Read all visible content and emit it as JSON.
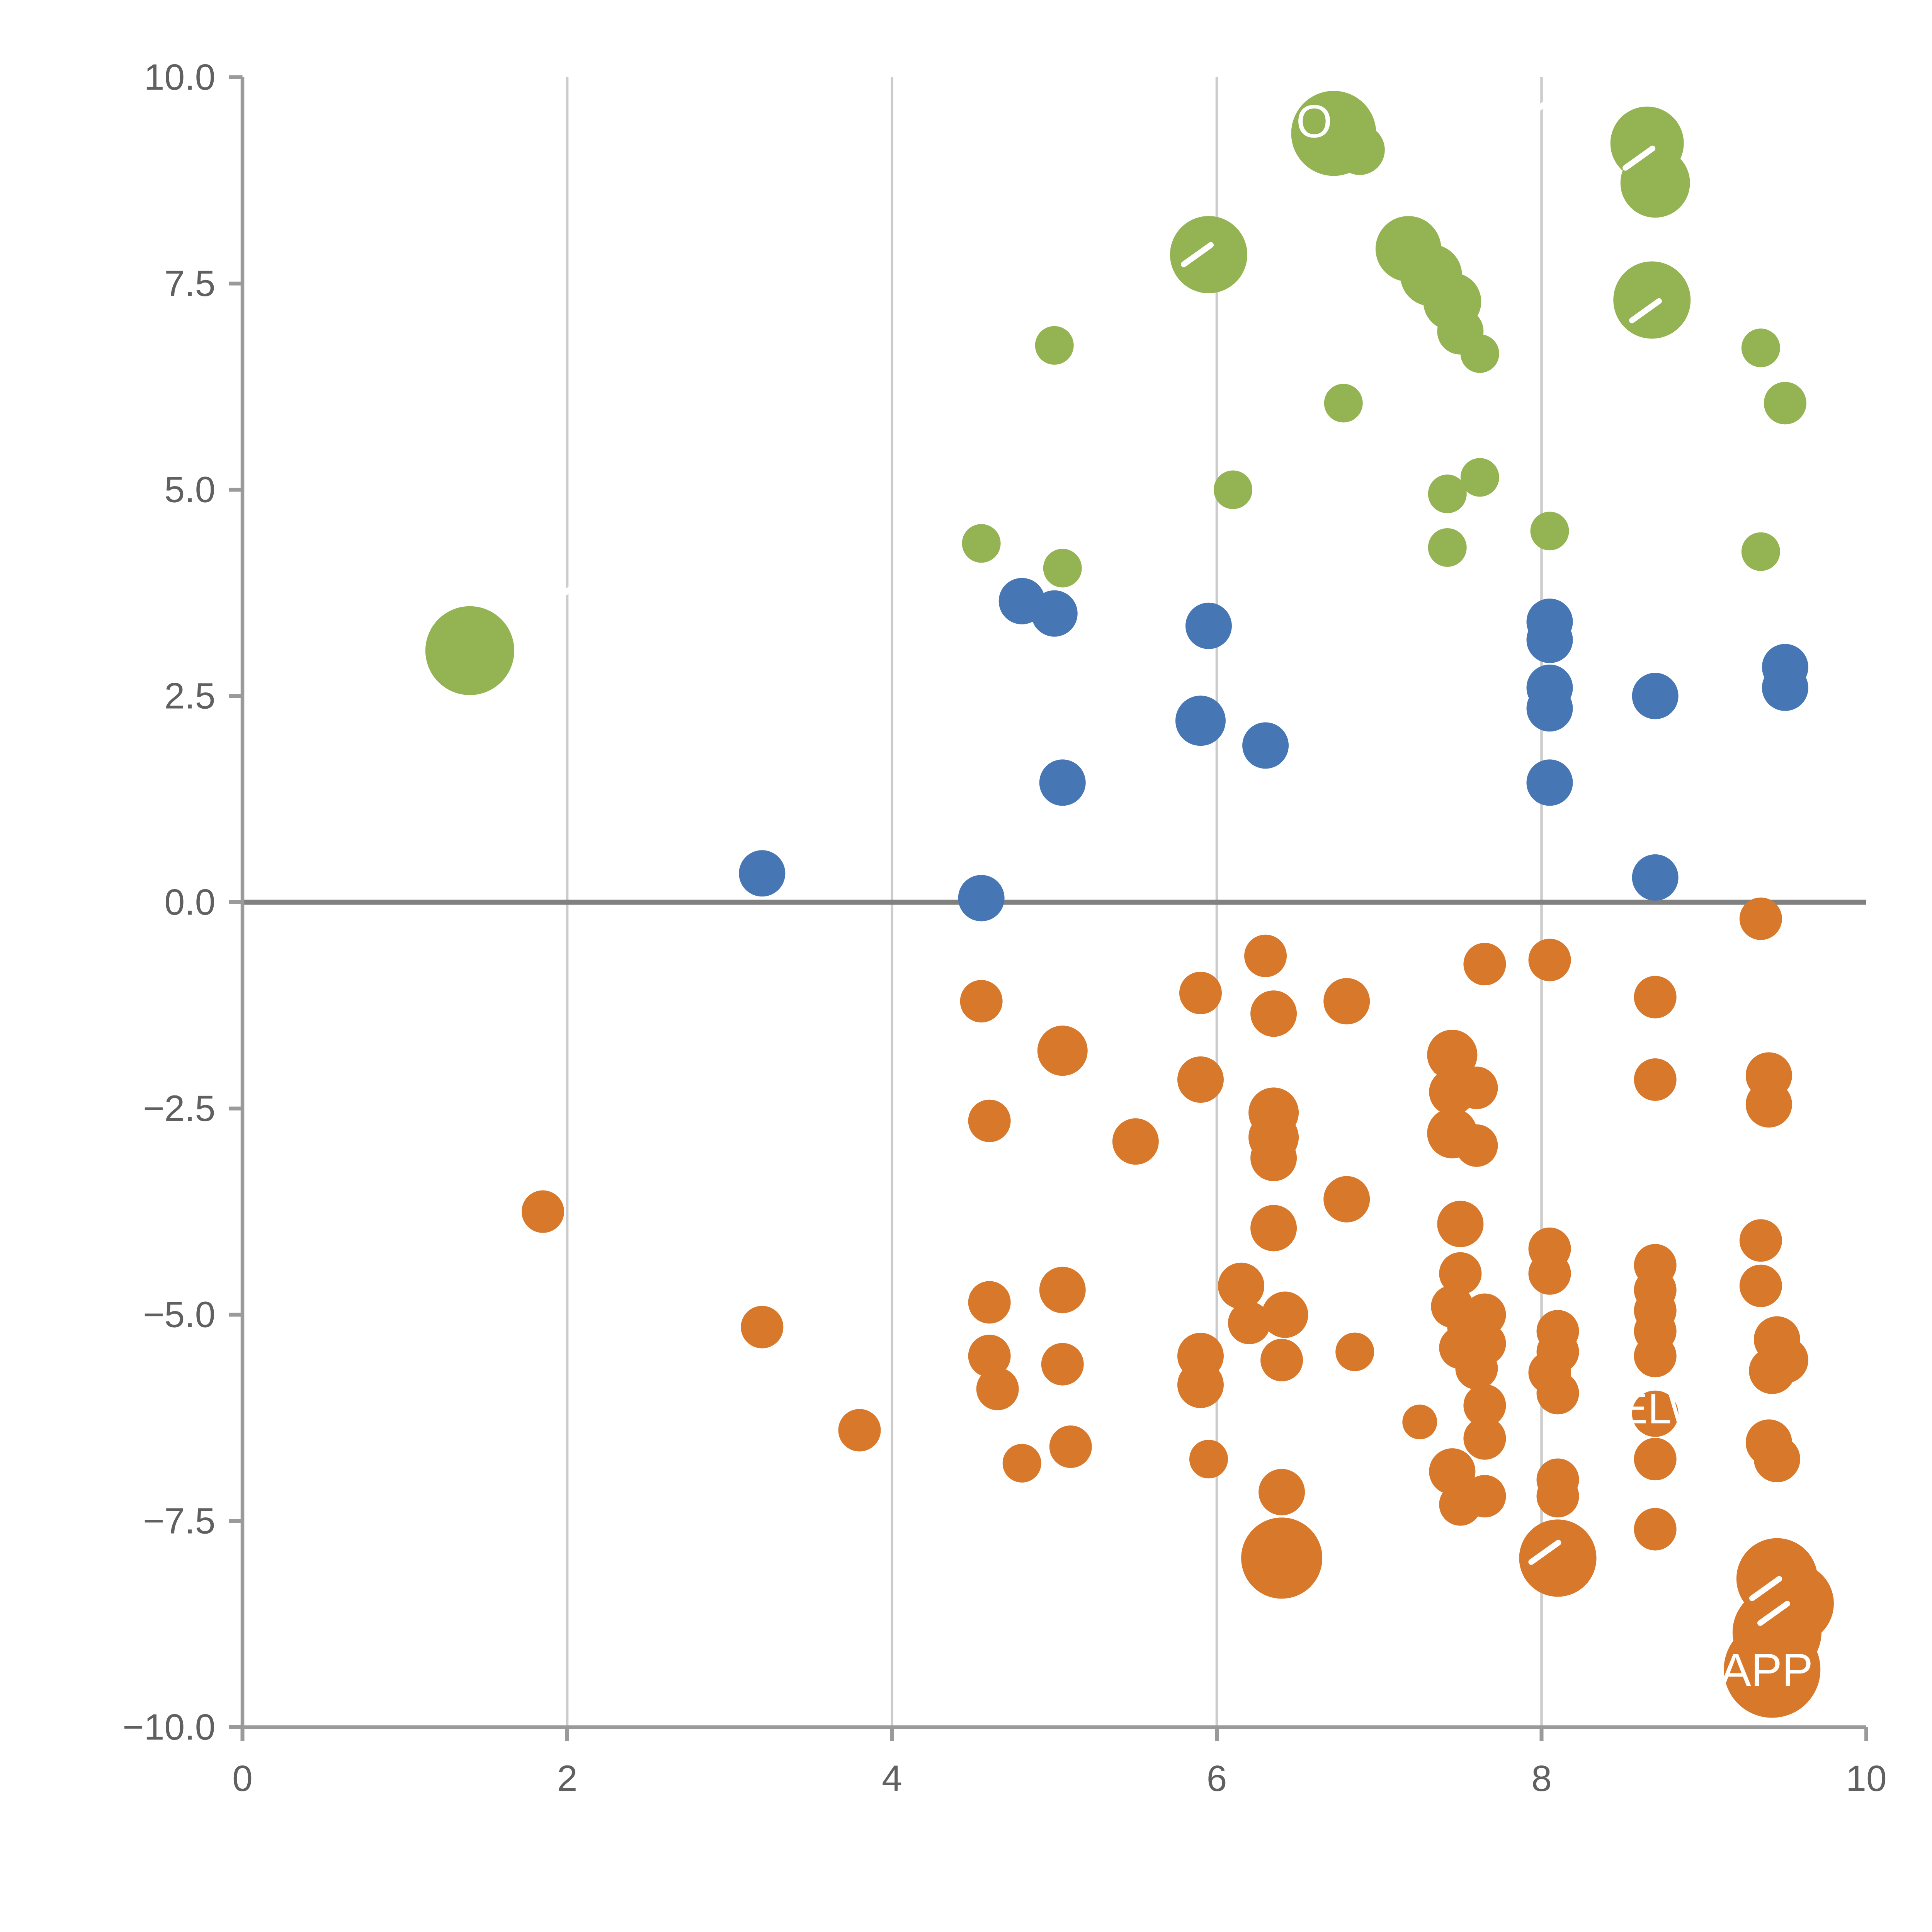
{
  "page": {
    "background": "#ffffff"
  },
  "chart_data": {
    "type": "scatter",
    "title": "",
    "xlabel": "",
    "ylabel": "",
    "xlim": [
      0,
      10
    ],
    "ylim": [
      -10,
      10
    ],
    "x_ticks": [
      0,
      2,
      4,
      6,
      8,
      10
    ],
    "x_tick_labels": [
      "0",
      "2",
      "4",
      "6",
      "8",
      "10"
    ],
    "y_ticks": [
      -10,
      -7.5,
      -5,
      -2.5,
      0,
      2.5,
      5,
      7.5,
      10
    ],
    "y_tick_labels": [
      "−10.0",
      "−7.5",
      "−5.0",
      "−2.5",
      "0.0",
      "2.5",
      "5.0",
      "7.5",
      "10.0"
    ],
    "grid": {
      "vertical_lines": [
        2,
        4,
        6,
        8
      ],
      "color": "#cccccc",
      "on": true
    },
    "zero_line": {
      "y": 0,
      "color": "#808080"
    },
    "axis": {
      "spine_color": "#9a9a9a",
      "tick_color": "#9a9a9a",
      "label_color": "#606060"
    },
    "legend": "none",
    "series": [
      {
        "name": "green",
        "color": "#94b454",
        "points": [
          [
            1.4,
            3.05,
            23
          ],
          [
            4.55,
            4.35,
            10
          ],
          [
            5.0,
            6.75,
            10
          ],
          [
            5.05,
            4.05,
            10
          ],
          [
            5.95,
            7.85,
            20
          ],
          [
            6.1,
            5.0,
            10
          ],
          [
            6.72,
            9.32,
            22
          ],
          [
            6.88,
            9.12,
            13
          ],
          [
            6.78,
            6.05,
            10
          ],
          [
            7.18,
            7.92,
            17
          ],
          [
            7.32,
            7.6,
            16
          ],
          [
            7.45,
            7.28,
            15
          ],
          [
            7.5,
            6.92,
            12
          ],
          [
            7.62,
            6.65,
            10
          ],
          [
            7.42,
            4.95,
            10
          ],
          [
            7.62,
            5.15,
            10
          ],
          [
            7.42,
            4.3,
            10
          ],
          [
            8.05,
            4.5,
            10
          ],
          [
            8.65,
            9.2,
            19
          ],
          [
            8.7,
            8.72,
            18
          ],
          [
            8.68,
            7.3,
            20
          ],
          [
            9.35,
            6.72,
            10
          ],
          [
            9.5,
            6.05,
            11
          ],
          [
            9.35,
            4.25,
            10
          ]
        ]
      },
      {
        "name": "blue",
        "color": "#4677b4",
        "points": [
          [
            3.2,
            0.35,
            12
          ],
          [
            4.55,
            0.05,
            12
          ],
          [
            4.8,
            3.65,
            12
          ],
          [
            5.0,
            3.5,
            12
          ],
          [
            5.05,
            1.45,
            12
          ],
          [
            5.95,
            3.35,
            12
          ],
          [
            5.9,
            2.2,
            13
          ],
          [
            6.3,
            1.9,
            12
          ],
          [
            8.05,
            3.4,
            12
          ],
          [
            8.05,
            3.18,
            12
          ],
          [
            8.05,
            2.6,
            12
          ],
          [
            8.05,
            2.35,
            12
          ],
          [
            8.05,
            1.45,
            12
          ],
          [
            8.7,
            2.5,
            12
          ],
          [
            8.7,
            0.3,
            12
          ],
          [
            9.5,
            2.85,
            12
          ],
          [
            9.5,
            2.6,
            12
          ]
        ]
      },
      {
        "name": "orange",
        "color": "#d8782b",
        "points": [
          [
            1.85,
            -3.75,
            11
          ],
          [
            3.2,
            -5.15,
            11
          ],
          [
            3.8,
            -6.4,
            11
          ],
          [
            4.55,
            -1.2,
            11
          ],
          [
            4.6,
            -2.65,
            11
          ],
          [
            4.6,
            -4.85,
            11
          ],
          [
            4.6,
            -5.5,
            11
          ],
          [
            4.65,
            -5.9,
            11
          ],
          [
            4.8,
            -6.8,
            10
          ],
          [
            5.05,
            -1.8,
            13
          ],
          [
            5.05,
            -4.7,
            12
          ],
          [
            5.05,
            -5.6,
            11
          ],
          [
            5.1,
            -6.6,
            11
          ],
          [
            5.5,
            -2.9,
            12
          ],
          [
            5.9,
            -1.1,
            11
          ],
          [
            5.9,
            -2.15,
            12
          ],
          [
            5.9,
            -5.5,
            12
          ],
          [
            5.9,
            -5.85,
            12
          ],
          [
            5.95,
            -6.75,
            10
          ],
          [
            6.15,
            -4.65,
            12
          ],
          [
            6.2,
            -5.1,
            11
          ],
          [
            6.3,
            -0.65,
            11
          ],
          [
            6.35,
            -1.35,
            12
          ],
          [
            6.35,
            -2.55,
            13
          ],
          [
            6.35,
            -2.85,
            13
          ],
          [
            6.35,
            -3.1,
            12
          ],
          [
            6.35,
            -3.95,
            12
          ],
          [
            6.42,
            -5.0,
            12
          ],
          [
            6.4,
            -5.55,
            11
          ],
          [
            6.4,
            -7.15,
            12
          ],
          [
            6.4,
            -7.95,
            21
          ],
          [
            6.8,
            -1.2,
            12
          ],
          [
            6.8,
            -3.6,
            12
          ],
          [
            6.85,
            -5.45,
            10
          ],
          [
            7.25,
            -6.3,
            9
          ],
          [
            7.45,
            -1.85,
            13
          ],
          [
            7.45,
            -2.3,
            12
          ],
          [
            7.6,
            -2.25,
            11
          ],
          [
            7.45,
            -2.8,
            13
          ],
          [
            7.6,
            -2.95,
            11
          ],
          [
            7.5,
            -3.9,
            12
          ],
          [
            7.5,
            -4.5,
            11
          ],
          [
            7.45,
            -4.9,
            11
          ],
          [
            7.55,
            -5.15,
            11
          ],
          [
            7.65,
            -5.0,
            11
          ],
          [
            7.5,
            -5.4,
            11
          ],
          [
            7.65,
            -5.35,
            11
          ],
          [
            7.6,
            -5.65,
            11
          ],
          [
            7.65,
            -6.1,
            11
          ],
          [
            7.65,
            -6.5,
            11
          ],
          [
            7.45,
            -6.9,
            12
          ],
          [
            7.5,
            -7.3,
            11
          ],
          [
            7.65,
            -7.2,
            11
          ],
          [
            7.65,
            -0.75,
            11
          ],
          [
            8.05,
            -0.7,
            11
          ],
          [
            8.05,
            -4.2,
            11
          ],
          [
            8.05,
            -4.5,
            11
          ],
          [
            8.1,
            -5.2,
            11
          ],
          [
            8.1,
            -5.45,
            11
          ],
          [
            8.05,
            -5.7,
            11
          ],
          [
            8.1,
            -5.95,
            11
          ],
          [
            8.1,
            -7.0,
            11
          ],
          [
            8.1,
            -7.2,
            11
          ],
          [
            8.1,
            -7.95,
            20
          ],
          [
            8.7,
            -1.15,
            11
          ],
          [
            8.7,
            -2.15,
            11
          ],
          [
            8.7,
            -4.4,
            11
          ],
          [
            8.7,
            -4.7,
            11
          ],
          [
            8.7,
            -4.95,
            11
          ],
          [
            8.7,
            -5.2,
            11
          ],
          [
            8.7,
            -5.5,
            11
          ],
          [
            8.7,
            -6.2,
            12
          ],
          [
            8.7,
            -6.75,
            11
          ],
          [
            8.7,
            -7.6,
            11
          ],
          [
            9.35,
            -0.2,
            11
          ],
          [
            9.4,
            -2.1,
            12
          ],
          [
            9.4,
            -2.45,
            12
          ],
          [
            9.35,
            -4.1,
            11
          ],
          [
            9.35,
            -4.65,
            11
          ],
          [
            9.45,
            -5.3,
            12
          ],
          [
            9.5,
            -5.55,
            12
          ],
          [
            9.42,
            -5.68,
            12
          ],
          [
            9.4,
            -6.55,
            12
          ],
          [
            9.45,
            -6.75,
            12
          ],
          [
            9.45,
            -8.2,
            21
          ],
          [
            9.55,
            -8.5,
            21
          ],
          [
            9.45,
            -8.85,
            23
          ],
          [
            9.42,
            -9.3,
            25
          ]
        ]
      }
    ],
    "annotations": [
      {
        "text": "O",
        "x": 6.6,
        "y": 9.42,
        "size": 24,
        "color": "#ffffff",
        "anchor": "middle"
      },
      {
        "text": "ELWA",
        "x": 8.48,
        "y": -6.18,
        "size": 22,
        "color": "#ffffff",
        "anchor": "start"
      },
      {
        "text": "APP",
        "x": 9.1,
        "y": -9.35,
        "size": 24,
        "color": "#ffffff",
        "anchor": "start"
      }
    ],
    "leader_marks": [
      [
        5.88,
        7.85
      ],
      [
        8.6,
        9.02
      ],
      [
        8.64,
        7.17
      ],
      [
        8.02,
        -7.88
      ],
      [
        9.38,
        -8.32
      ],
      [
        9.43,
        -8.62
      ],
      [
        2.0,
        3.77
      ],
      [
        8.05,
        9.72
      ]
    ]
  }
}
